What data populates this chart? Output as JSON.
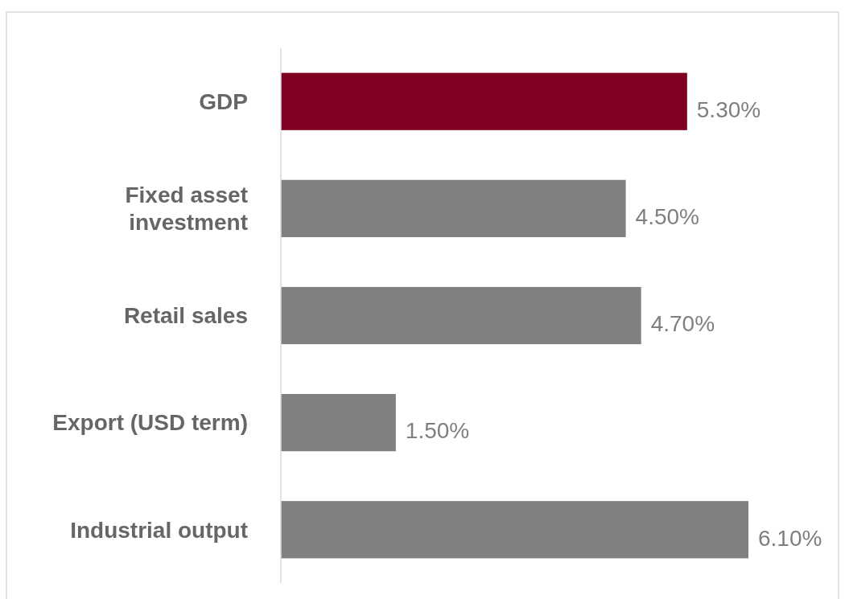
{
  "chart_data": {
    "type": "bar",
    "orientation": "horizontal",
    "categories": [
      "GDP",
      "Fixed asset investment",
      "Retail sales",
      "Export (USD term)",
      "Industrial output"
    ],
    "values": [
      5.3,
      4.5,
      4.7,
      1.5,
      6.1
    ],
    "colors": [
      "#7f0020",
      "#808080",
      "#808080",
      "#808080",
      "#808080"
    ],
    "value_labels": [
      "5.30%",
      "4.50%",
      "4.70%",
      "1.50%",
      "6.10%"
    ]
  }
}
